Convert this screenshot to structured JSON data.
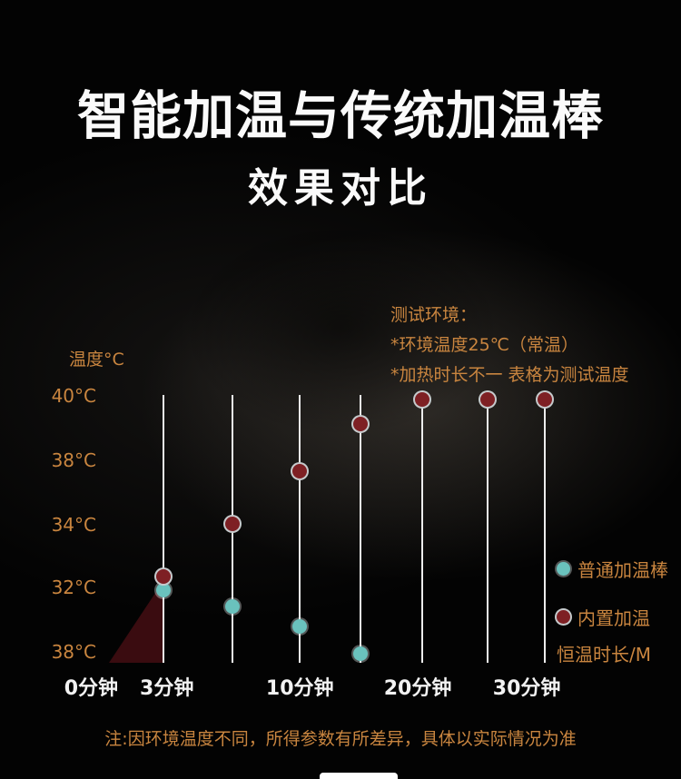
{
  "page": {
    "title": "智能加温与传统加温棒",
    "subtitle": "效果对比",
    "footnote": "注:因环境温度不同，所得参数有所差异，具体以实际情况为准"
  },
  "annotation": {
    "heading": "测试环境：",
    "line1": "*环境温度25℃（常温）",
    "line2": "*加热时长不一 表格为测试温度"
  },
  "axis": {
    "y_title": "温度°C",
    "x_title": "恒温时长/M"
  },
  "legend": {
    "items": [
      {
        "key": "ordinary-heating-rod",
        "label": "普通加温棒",
        "color": "#6ac2bd",
        "ring": "rgba(240,248,248,0.35)"
      },
      {
        "key": "built-in-heating",
        "label": "内置加温",
        "color": "#7e2024",
        "ring": "#c6cacc"
      }
    ]
  },
  "colors": {
    "accent_orange": "#c9853f",
    "grid_line": "#ededed",
    "triangle_fill": "#3f0d11",
    "title_text": "#fafafa"
  },
  "chart_data": {
    "type": "scatter",
    "title": "智能加温与传统加温棒 效果对比",
    "xlabel": "恒温时长/M",
    "ylabel": "温度°C",
    "x_tick_labels": [
      "0分钟",
      "3分钟",
      "10分钟",
      "20分钟",
      "30分钟"
    ],
    "y_tick_labels": [
      "40°C",
      "38°C",
      "34°C",
      "32°C",
      "38°C"
    ],
    "legend_position": "right",
    "grid": "vertical-only",
    "series": [
      {
        "name": "普通加温棒",
        "color": "#6ac2bd",
        "ring": "rgba(240,248,248,0.35)",
        "points": [
          {
            "time_min": 3,
            "temp_c": 32.0
          },
          {
            "time_min": 6,
            "temp_c": 31.3
          },
          {
            "time_min": 10,
            "temp_c": 30.4
          },
          {
            "time_min": 14,
            "temp_c": 28.2
          }
        ]
      },
      {
        "name": "内置加温",
        "color": "#7e2024",
        "ring": "#c6cacc",
        "points": [
          {
            "time_min": 3,
            "temp_c": 32.4
          },
          {
            "time_min": 6,
            "temp_c": 34.2
          },
          {
            "time_min": 10,
            "temp_c": 37.8
          },
          {
            "time_min": 14,
            "temp_c": 39.5
          },
          {
            "time_min": 20,
            "temp_c": 40.0
          },
          {
            "time_min": 25,
            "temp_c": 40.0
          },
          {
            "time_min": 30,
            "temp_c": 40.0
          }
        ]
      }
    ],
    "render": {
      "gridline_x_pct": [
        12.2,
        27.8,
        42.9,
        56.5,
        70.4,
        85.1,
        98.0
      ],
      "y_tick_pct": [
        0.3,
        24.4,
        48.5,
        71.9,
        95.9
      ],
      "x_tick_pct": [
        -4.0,
        13.0,
        42.9,
        69.4,
        93.9
      ],
      "series_points_pct": [
        {
          "key": "ordinary-heating-rod",
          "points": [
            [
              12.2,
              72.9
            ],
            [
              27.8,
              79.0
            ],
            [
              42.9,
              86.4
            ],
            [
              56.5,
              96.6
            ]
          ]
        },
        {
          "key": "built-in-heating",
          "points": [
            [
              12.2,
              67.8
            ],
            [
              27.8,
              48.1
            ],
            [
              42.9,
              28.5
            ],
            [
              56.5,
              10.8
            ],
            [
              70.4,
              1.7
            ],
            [
              85.1,
              1.7
            ],
            [
              98.0,
              1.7
            ]
          ]
        }
      ],
      "triangle": {
        "left_pct": 0,
        "width_pct": 12.4,
        "top_pct": 69.0
      }
    }
  }
}
